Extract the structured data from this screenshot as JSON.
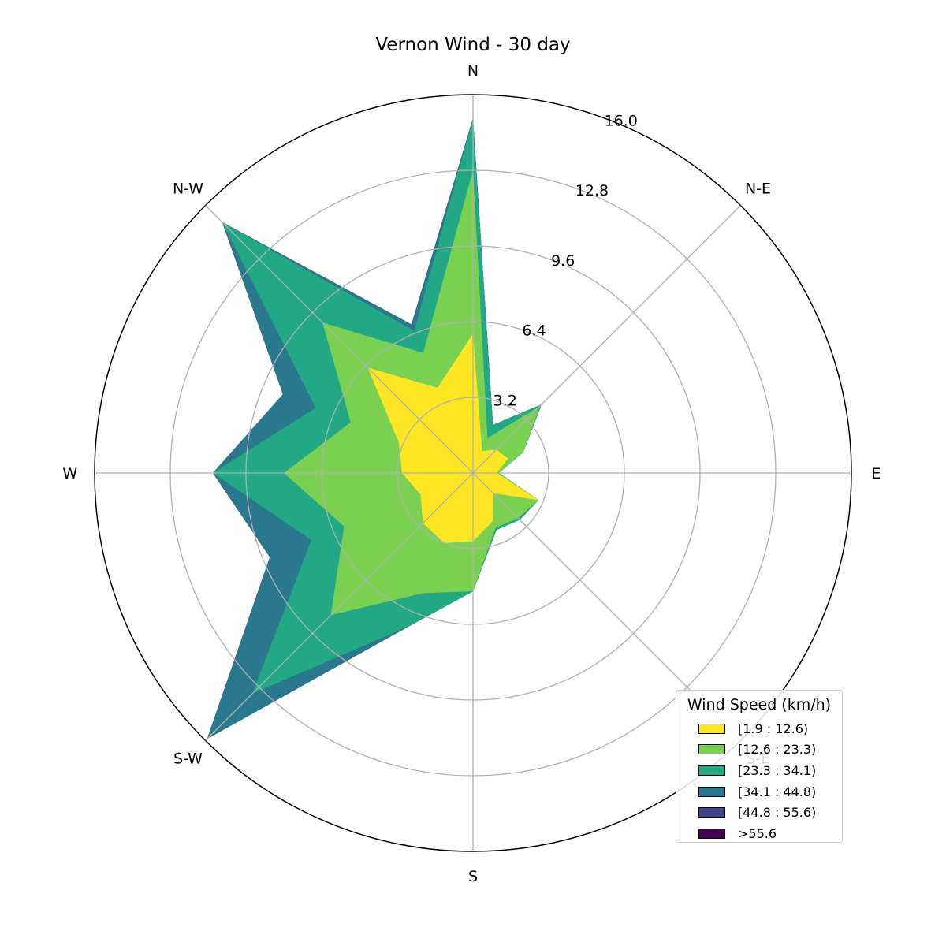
{
  "chart_data": {
    "type": "polar-area",
    "title": "Vernon Wind - 30 day",
    "directions": [
      "N",
      "N-E",
      "E",
      "S-E",
      "S",
      "S-W",
      "W",
      "N-W"
    ],
    "r_ticks": [
      "3.2",
      "6.4",
      "9.6",
      "12.8",
      "16.0"
    ],
    "rmax": 16.0,
    "grid": true,
    "legend": {
      "title": "Wind Speed (km/h)",
      "placement": "lower-right"
    },
    "angles_deg": [
      0,
      22.5,
      45,
      67.5,
      90,
      112.5,
      135,
      157.5,
      180,
      202.5,
      225,
      247.5,
      270,
      292.5,
      315,
      337.5
    ],
    "series": [
      {
        "name": "[1.9 : 12.6)",
        "color": "#fde725",
        "values": [
          5.9,
          1.0,
          1.4,
          1.6,
          1.0,
          3.0,
          1.2,
          2.2,
          2.9,
          3.2,
          3.0,
          2.4,
          3.0,
          3.4,
          6.3,
          3.9
        ]
      },
      {
        "name": "[12.6 : 23.3)",
        "color": "#7ad151",
        "values": [
          12.8,
          1.6,
          4.0,
          2.3,
          1.1,
          3.0,
          2.7,
          2.5,
          5.0,
          5.5,
          8.5,
          5.9,
          8.0,
          5.6,
          9.0,
          5.5
        ]
      },
      {
        "name": "[23.3 : 34.1)",
        "color": "#22a884",
        "values": [
          15.0,
          2.2,
          4.1,
          2.3,
          1.1,
          3.0,
          2.8,
          2.6,
          5.0,
          7.0,
          13.2,
          7.4,
          11.0,
          7.2,
          15.0,
          6.5
        ]
      },
      {
        "name": "[34.1 : 44.8)",
        "color": "#2a788e",
        "values": [
          15.0,
          2.2,
          4.1,
          2.3,
          1.1,
          3.0,
          2.8,
          2.6,
          5.0,
          7.0,
          15.9,
          9.3,
          11.0,
          8.7,
          15.0,
          6.8
        ]
      },
      {
        "name": "[44.8 : 55.6)",
        "color": "#414487",
        "values": [
          15.0,
          2.2,
          4.1,
          2.3,
          1.1,
          3.0,
          2.8,
          2.6,
          5.0,
          7.0,
          15.9,
          9.3,
          11.0,
          8.7,
          15.0,
          6.8
        ]
      },
      {
        "name": ">55.6",
        "color": "#440154",
        "values": [
          15.0,
          2.2,
          4.1,
          2.3,
          1.1,
          3.0,
          2.8,
          2.6,
          5.0,
          7.0,
          15.9,
          9.3,
          11.0,
          8.7,
          15.0,
          6.8
        ]
      }
    ]
  }
}
